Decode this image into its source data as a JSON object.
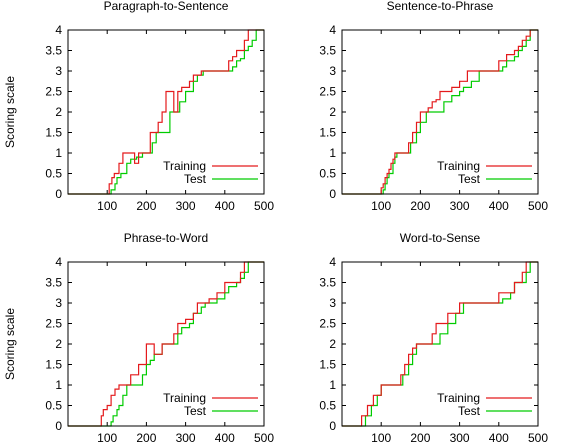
{
  "figure": {
    "ylabel": "Scoring scale",
    "xticks": [
      100,
      200,
      300,
      400,
      500
    ],
    "yticks": [
      "0",
      "0.5",
      "1",
      "1.5",
      "2",
      "2.5",
      "3",
      "3.5",
      "4"
    ],
    "legend": [
      "Training",
      "Test"
    ],
    "colors": {
      "Training": "#e41a1c",
      "Test": "#00cc00"
    }
  },
  "chart_data": [
    {
      "type": "line",
      "title": "Paragraph-to-Sentence",
      "ylabel": "Scoring scale",
      "xlim": [
        0,
        500
      ],
      "ylim": [
        0,
        4
      ],
      "legend_position": "bottom-right",
      "series": [
        {
          "name": "Training",
          "x": [
            0,
            100,
            105,
            112,
            118,
            125,
            130,
            140,
            160,
            170,
            180,
            200,
            210,
            220,
            230,
            240,
            250,
            270,
            280,
            290,
            310,
            320,
            340,
            350,
            370,
            380,
            400,
            410,
            420,
            430,
            440,
            450,
            460,
            470,
            480,
            500
          ],
          "y": [
            0,
            0,
            0.25,
            0.4,
            0.5,
            0.5,
            0.75,
            1.0,
            1.0,
            0.75,
            1.0,
            1.0,
            1.5,
            1.5,
            1.75,
            2.0,
            2.5,
            2.0,
            2.5,
            2.6,
            2.75,
            2.9,
            3.0,
            3.0,
            3.0,
            3.0,
            3.0,
            3.25,
            3.35,
            3.5,
            3.5,
            3.75,
            4.0,
            4.0,
            4.0,
            4.0
          ]
        },
        {
          "name": "Test",
          "x": [
            0,
            100,
            110,
            120,
            125,
            135,
            140,
            150,
            160,
            175,
            190,
            200,
            215,
            225,
            240,
            260,
            265,
            280,
            285,
            300,
            320,
            330,
            345,
            360,
            380,
            390,
            400,
            420,
            430,
            440,
            450,
            460,
            470,
            480,
            500
          ],
          "y": [
            0,
            0,
            0.1,
            0.25,
            0.4,
            0.5,
            0.5,
            0.75,
            0.85,
            0.9,
            1.0,
            1.0,
            1.25,
            1.5,
            1.5,
            2.0,
            2.0,
            2.0,
            2.25,
            2.5,
            2.75,
            2.9,
            3.0,
            3.0,
            3.0,
            3.0,
            3.0,
            3.1,
            3.25,
            3.3,
            3.5,
            3.6,
            3.75,
            4.0,
            4.0
          ]
        }
      ]
    },
    {
      "type": "line",
      "title": "Sentence-to-Phrase",
      "xlim": [
        0,
        500
      ],
      "ylim": [
        0,
        4
      ],
      "legend_position": "bottom-right",
      "series": [
        {
          "name": "Training",
          "x": [
            0,
            95,
            100,
            105,
            110,
            115,
            120,
            125,
            130,
            135,
            140,
            160,
            170,
            180,
            190,
            200,
            210,
            220,
            230,
            240,
            250,
            260,
            280,
            300,
            320,
            340,
            350,
            360,
            380,
            400,
            420,
            440,
            450,
            460,
            470,
            480,
            500
          ],
          "y": [
            0,
            0,
            0.15,
            0.25,
            0.4,
            0.5,
            0.6,
            0.75,
            0.85,
            1.0,
            1.0,
            1.0,
            1.25,
            1.5,
            1.75,
            2.0,
            2.0,
            2.1,
            2.25,
            2.3,
            2.5,
            2.5,
            2.6,
            2.75,
            3.0,
            3.0,
            3.0,
            3.0,
            3.0,
            3.25,
            3.4,
            3.5,
            3.6,
            3.75,
            3.85,
            4.0,
            4.0
          ]
        },
        {
          "name": "Test",
          "x": [
            0,
            100,
            105,
            110,
            115,
            120,
            130,
            135,
            140,
            165,
            175,
            190,
            200,
            215,
            230,
            250,
            260,
            280,
            300,
            310,
            330,
            350,
            360,
            380,
            400,
            410,
            420,
            440,
            450,
            460,
            470,
            480,
            500
          ],
          "y": [
            0,
            0,
            0.1,
            0.25,
            0.4,
            0.5,
            0.75,
            0.9,
            1.0,
            1.0,
            1.25,
            1.5,
            1.75,
            2.0,
            2.0,
            2.0,
            2.25,
            2.4,
            2.5,
            2.6,
            2.75,
            3.0,
            3.0,
            3.0,
            3.0,
            3.1,
            3.25,
            3.35,
            3.5,
            3.6,
            3.75,
            4.0,
            4.0
          ]
        }
      ]
    },
    {
      "type": "line",
      "title": "Phrase-to-Word",
      "ylabel": "Scoring scale",
      "xlim": [
        0,
        500
      ],
      "ylim": [
        0,
        4
      ],
      "legend_position": "bottom-right",
      "series": [
        {
          "name": "Training",
          "x": [
            0,
            80,
            85,
            90,
            100,
            110,
            120,
            130,
            140,
            160,
            180,
            190,
            200,
            210,
            220,
            240,
            250,
            270,
            280,
            300,
            320,
            330,
            340,
            360,
            380,
            400,
            420,
            440,
            450,
            460,
            470,
            500
          ],
          "y": [
            0,
            0,
            0.25,
            0.4,
            0.5,
            0.75,
            0.9,
            1.0,
            1.0,
            1.25,
            1.5,
            1.5,
            2.0,
            2.0,
            1.75,
            2.0,
            2.0,
            2.25,
            2.5,
            2.6,
            2.75,
            3.0,
            3.0,
            3.1,
            3.25,
            3.5,
            3.5,
            3.75,
            4.0,
            4.0,
            4.0,
            4.0
          ]
        },
        {
          "name": "Test",
          "x": [
            0,
            100,
            110,
            115,
            125,
            130,
            140,
            150,
            160,
            170,
            190,
            200,
            210,
            220,
            240,
            250,
            270,
            280,
            290,
            310,
            320,
            340,
            350,
            370,
            380,
            400,
            410,
            430,
            440,
            450,
            460,
            470,
            500
          ],
          "y": [
            0,
            0,
            0.1,
            0.25,
            0.4,
            0.5,
            0.75,
            1.0,
            1.0,
            1.0,
            1.25,
            1.5,
            1.6,
            1.75,
            2.0,
            2.0,
            2.0,
            2.25,
            2.4,
            2.5,
            2.75,
            2.9,
            3.0,
            3.0,
            3.1,
            3.25,
            3.4,
            3.5,
            3.6,
            3.75,
            4.0,
            4.0,
            4.0
          ]
        }
      ]
    },
    {
      "type": "line",
      "title": "Word-to-Sense",
      "xlim": [
        0,
        500
      ],
      "ylim": [
        0,
        4
      ],
      "legend_position": "bottom-right",
      "series": [
        {
          "name": "Training",
          "x": [
            0,
            45,
            50,
            65,
            80,
            100,
            140,
            150,
            160,
            170,
            180,
            190,
            200,
            230,
            240,
            250,
            270,
            280,
            300,
            320,
            340,
            360,
            380,
            400,
            420,
            440,
            450,
            460,
            470,
            480,
            500
          ],
          "y": [
            0,
            0,
            0.25,
            0.5,
            0.75,
            1.0,
            1.0,
            1.25,
            1.5,
            1.75,
            1.9,
            2.0,
            2.0,
            2.25,
            2.5,
            2.5,
            2.75,
            2.75,
            3.0,
            3.0,
            3.0,
            3.0,
            3.0,
            3.25,
            3.25,
            3.5,
            3.5,
            3.75,
            4.0,
            4.0,
            4.0
          ]
        },
        {
          "name": "Test",
          "x": [
            0,
            55,
            60,
            75,
            90,
            100,
            140,
            155,
            170,
            180,
            190,
            210,
            240,
            250,
            260,
            270,
            290,
            310,
            330,
            360,
            380,
            400,
            410,
            430,
            440,
            460,
            470,
            480,
            500
          ],
          "y": [
            0,
            0,
            0.25,
            0.5,
            0.75,
            1.0,
            1.0,
            1.25,
            1.5,
            1.75,
            2.0,
            2.0,
            2.0,
            2.25,
            2.25,
            2.5,
            2.75,
            3.0,
            3.0,
            3.0,
            3.0,
            3.0,
            3.1,
            3.25,
            3.5,
            3.5,
            3.75,
            4.0,
            4.0
          ]
        }
      ]
    }
  ]
}
